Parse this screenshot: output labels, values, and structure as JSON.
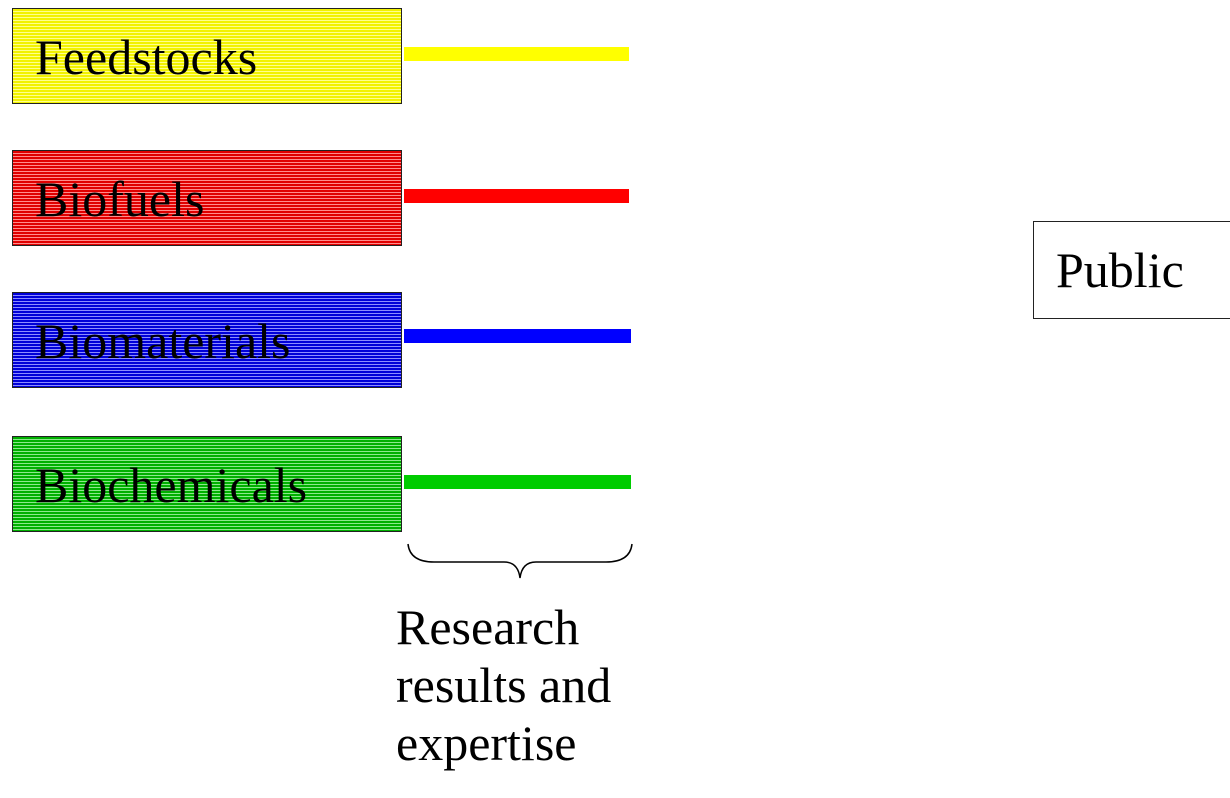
{
  "categories": [
    {
      "id": "feedstocks",
      "label": "Feedstocks",
      "color": "#ffff00"
    },
    {
      "id": "biofuels",
      "label": "Biofuels",
      "color": "#ff0000"
    },
    {
      "id": "biomaterials",
      "label": "Biomaterials",
      "color": "#0000ff"
    },
    {
      "id": "biochemicals",
      "label": "Biochemicals",
      "color": "#00cc00"
    }
  ],
  "caption": {
    "line1": "Research",
    "line2": "results and",
    "line3": "expertise"
  },
  "public_box": {
    "label": "Public"
  }
}
